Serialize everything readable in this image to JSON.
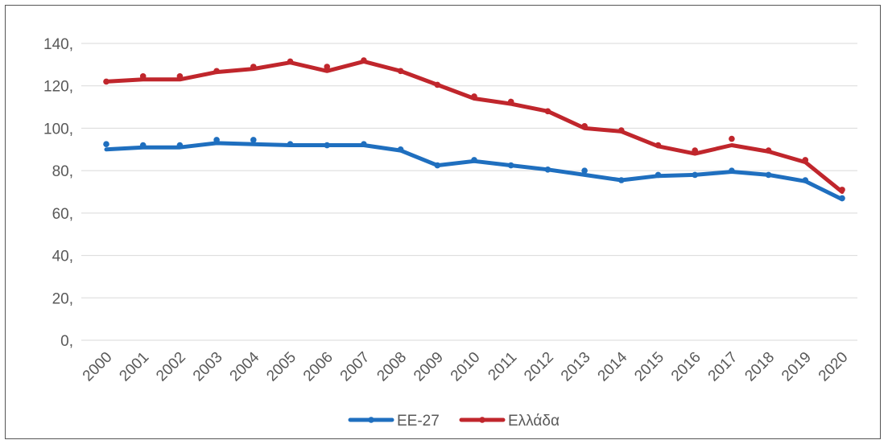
{
  "chart_data": {
    "type": "line",
    "title": "",
    "xlabel": "",
    "ylabel": "",
    "ylim": [
      0,
      140
    ],
    "yticks": [
      0,
      20,
      40,
      60,
      80,
      100,
      120,
      140
    ],
    "ytick_labels": [
      "0,",
      "20,",
      "40,",
      "60,",
      "80,",
      "100,",
      "120,",
      "140,"
    ],
    "grid": true,
    "legend_position": "bottom",
    "x": [
      "2000",
      "2001",
      "2002",
      "2003",
      "2004",
      "2005",
      "2006",
      "2007",
      "2008",
      "2009",
      "2010",
      "2011",
      "2012",
      "2013",
      "2014",
      "2015",
      "2016",
      "2017",
      "2018",
      "2019",
      "2020"
    ],
    "series": [
      {
        "name": "ΕΕ-27",
        "color": "#1F6FBF",
        "line": [
          90,
          91,
          91,
          93,
          92.5,
          92,
          92,
          92,
          89.5,
          82.5,
          84.5,
          82.5,
          80.5,
          78,
          75.5,
          77.5,
          78,
          79.5,
          78,
          75,
          66.5
        ],
        "points": [
          92.5,
          92,
          92,
          94.5,
          94.5,
          92.5,
          92,
          92.5,
          90,
          82.5,
          85,
          82.5,
          80.5,
          80,
          75.5,
          78,
          78,
          80,
          78,
          75.5,
          67
        ]
      },
      {
        "name": "Ελλάδα",
        "color": "#C0262C",
        "line": [
          122,
          123,
          123,
          126.5,
          128,
          131,
          127,
          131.5,
          127,
          120.5,
          114,
          111.5,
          108,
          100,
          98.5,
          91.5,
          88,
          92,
          89,
          84,
          70
        ],
        "points": [
          122,
          124.5,
          124.5,
          127,
          129,
          131.5,
          129,
          132,
          127,
          120.5,
          115,
          112.5,
          108,
          101,
          99,
          92,
          89.5,
          95,
          89.5,
          85,
          71
        ]
      }
    ]
  }
}
